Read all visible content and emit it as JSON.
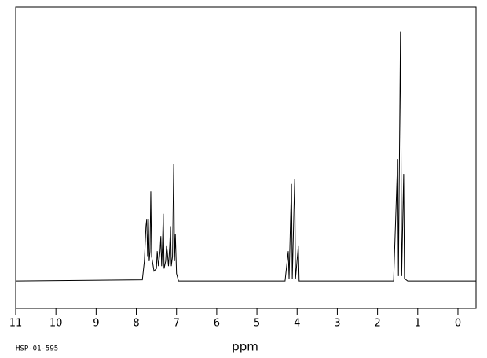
{
  "chart_data": {
    "type": "line",
    "xlabel": "ppm",
    "footnote": "HSP-01-595",
    "xlim": [
      11,
      -0.45
    ],
    "xticks": [
      11,
      10,
      9,
      8,
      7,
      6,
      5,
      4,
      3,
      2,
      1,
      0
    ],
    "ylim": [
      -11,
      110
    ],
    "series": [
      {
        "color": "#000000",
        "x": [
          11,
          7.85,
          7.8,
          7.76,
          7.74,
          7.72,
          7.7,
          7.68,
          7.66,
          7.64,
          7.62,
          7.56,
          7.5,
          7.48,
          7.45,
          7.41,
          7.39,
          7.37,
          7.35,
          7.33,
          7.31,
          7.27,
          7.25,
          7.23,
          7.2,
          7.17,
          7.15,
          7.13,
          7.1,
          7.07,
          7.05,
          7.03,
          7.0,
          6.95,
          4.3,
          4.22,
          4.2,
          4.14,
          4.12,
          4.06,
          4.04,
          3.97,
          3.95,
          1.6,
          1.5,
          1.48,
          1.43,
          1.4,
          1.35,
          1.33,
          1.25,
          -0.45
        ],
        "values": [
          0,
          0.5,
          8,
          22,
          25,
          10,
          25,
          8,
          12,
          36,
          10,
          4,
          5,
          12,
          6,
          12,
          18,
          6,
          14,
          27,
          5,
          8,
          14,
          12,
          6,
          14,
          22,
          6,
          10,
          47,
          8,
          19,
          3,
          0,
          0,
          12,
          1,
          39,
          1,
          41,
          1,
          14,
          0,
          0,
          49,
          2,
          100,
          2,
          43,
          1,
          0,
          0
        ]
      }
    ]
  }
}
